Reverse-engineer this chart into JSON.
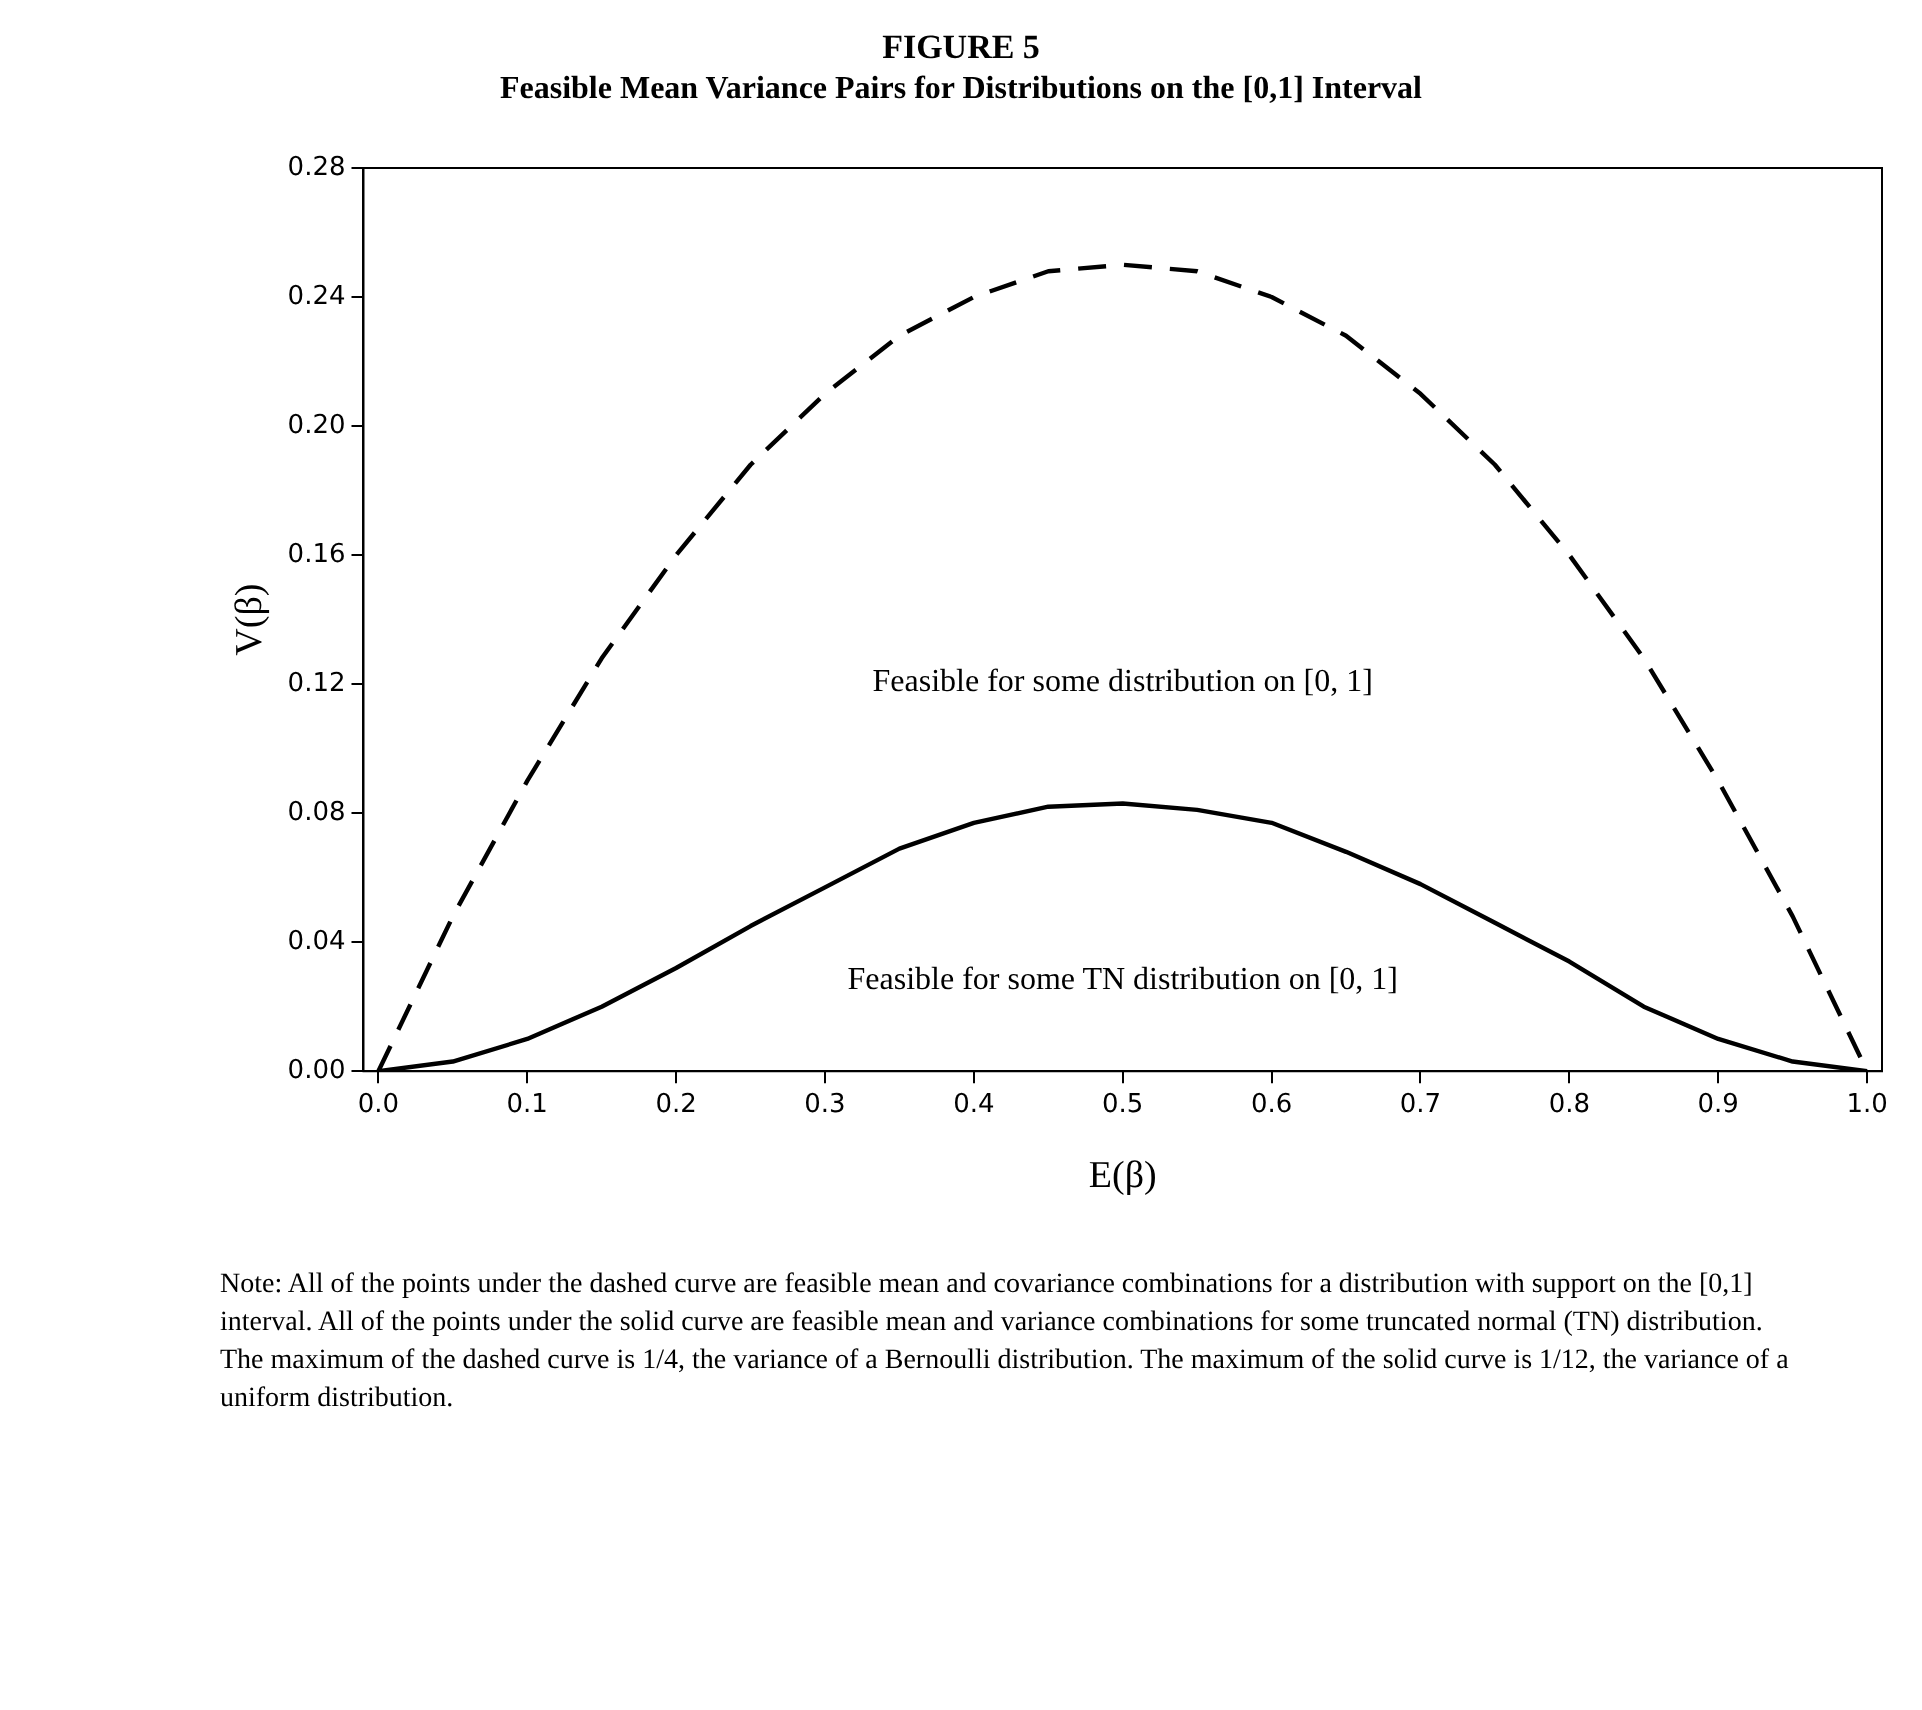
{
  "chart_data": {
    "type": "line",
    "title": "FIGURE 5",
    "subtitle": "Feasible Mean Variance Pairs for Distributions on the [0,1] Interval",
    "xlabel": "E(β)",
    "ylabel": "V(β)",
    "xlim": [
      -0.01,
      1.01
    ],
    "xticks": [
      {
        "value": 0,
        "label": "0.0"
      },
      {
        "value": 0.1,
        "label": "0.1"
      },
      {
        "value": 0.2,
        "label": "0.2"
      },
      {
        "value": 0.3,
        "label": "0.3"
      },
      {
        "value": 0.4,
        "label": "0.4"
      },
      {
        "value": 0.5,
        "label": "0.5"
      },
      {
        "value": 0.6,
        "label": "0.6"
      },
      {
        "value": 0.7,
        "label": "0.7"
      },
      {
        "value": 0.8,
        "label": "0.8"
      },
      {
        "value": 0.9,
        "label": "0.9"
      },
      {
        "value": 1,
        "label": "1.0"
      }
    ],
    "ylim": [
      0,
      0.28
    ],
    "yticks": [
      {
        "value": 0,
        "label": "0.00"
      },
      {
        "value": 0.04,
        "label": "0.04"
      },
      {
        "value": 0.08,
        "label": "0.08"
      },
      {
        "value": 0.12,
        "label": "0.12"
      },
      {
        "value": 0.16,
        "label": "0.16"
      },
      {
        "value": 0.2,
        "label": "0.20"
      },
      {
        "value": 0.24,
        "label": "0.24"
      },
      {
        "value": 0.28,
        "label": "0.28"
      }
    ],
    "x": [
      0,
      0.05,
      0.1,
      0.15,
      0.2,
      0.25,
      0.3,
      0.35,
      0.4,
      0.45,
      0.5,
      0.55,
      0.6,
      0.65,
      0.7,
      0.75,
      0.8,
      0.85,
      0.9,
      0.95,
      1
    ],
    "series": [
      {
        "color": "#000000",
        "line_style": "dashed",
        "values": [
          0,
          0.048,
          0.09,
          0.128,
          0.16,
          0.188,
          0.21,
          0.228,
          0.24,
          0.248,
          0.25,
          0.248,
          0.24,
          0.228,
          0.21,
          0.188,
          0.16,
          0.128,
          0.09,
          0.048,
          0
        ]
      },
      {
        "color": "#000000",
        "line_style": "solid",
        "values": [
          0,
          0.003,
          0.01,
          0.02,
          0.032,
          0.045,
          0.057,
          0.069,
          0.077,
          0.082,
          0.083,
          0.081,
          0.077,
          0.068,
          0.058,
          0.046,
          0.034,
          0.02,
          0.01,
          0.003,
          0
        ]
      }
    ],
    "grid": false,
    "legend": false,
    "marker": "none",
    "annotations": [
      "Feasible for some distribution on [0, 1]",
      "Feasible for some TN distribution on [0, 1]",
      "Note: All of the points under the dashed curve are feasible mean and covariance combinations for a distribution with support on the [0,1] interval. All of the points under the solid curve are feasible mean and variance combinations for some truncated normal (TN) distribution. The maximum of the dashed curve is 1/4, the variance of a Bernoulli distribution. The maximum of the solid curve is 1/12, the variance of a uniform distribution."
    ]
  }
}
